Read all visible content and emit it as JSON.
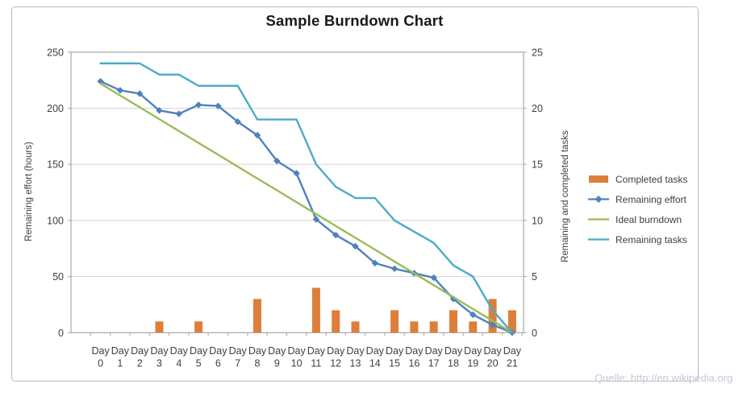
{
  "title": "Sample Burndown Chart",
  "footer": "Quelle: http://en.wikipedia.org",
  "axes": {
    "x_word": "Day",
    "x_numbers": [
      "0",
      "1",
      "2",
      "3",
      "4",
      "5",
      "6",
      "7",
      "8",
      "9",
      "10",
      "11",
      "12",
      "13",
      "14",
      "15",
      "16",
      "17",
      "18",
      "19",
      "20",
      "21"
    ],
    "left_ticks": [
      0,
      50,
      100,
      150,
      200,
      250
    ],
    "right_ticks": [
      0,
      5,
      10,
      15,
      20,
      25
    ]
  },
  "legend": [
    {
      "label": "Completed tasks",
      "swatch": "bar",
      "color": "#dd7e3a"
    },
    {
      "label": "Remaining effort",
      "swatch": "line-marker",
      "color": "#4f81bd"
    },
    {
      "label": "Ideal burndown",
      "swatch": "line",
      "color": "#9bbb59"
    },
    {
      "label": "Remaining tasks",
      "swatch": "line",
      "color": "#4bacc6"
    }
  ],
  "colors": {
    "gridline": "#d5d5d5",
    "axis_line": "#a7a7a7",
    "tick_label": "#3e3e46",
    "title": "#1a1a1a",
    "footer_text": "#c3c6d8",
    "frame_border": "#b9b9b9"
  },
  "chart_data": {
    "type": "combo (bar + line)",
    "title": "Sample Burndown Chart",
    "categories": [
      "Day 0",
      "Day 1",
      "Day 2",
      "Day 3",
      "Day 4",
      "Day 5",
      "Day 6",
      "Day 7",
      "Day 8",
      "Day 9",
      "Day 10",
      "Day 11",
      "Day 12",
      "Day 13",
      "Day 14",
      "Day 15",
      "Day 16",
      "Day 17",
      "Day 18",
      "Day 19",
      "Day 20",
      "Day 21"
    ],
    "left_axis": {
      "label": "Remaining effort (hours)",
      "min": 0,
      "max": 250,
      "step": 50
    },
    "right_axis": {
      "label": "Remaining and completed tasks",
      "min": 0,
      "max": 25,
      "step": 5
    },
    "grid": true,
    "legend_position": "right",
    "series": [
      {
        "name": "Completed tasks",
        "type": "bar",
        "axis": "right",
        "color": "#dd7e3a",
        "values": [
          0,
          0,
          0,
          1,
          0,
          1,
          0,
          0,
          3,
          0,
          0,
          4,
          2,
          1,
          0,
          2,
          1,
          1,
          2,
          1,
          3,
          2
        ]
      },
      {
        "name": "Remaining effort",
        "type": "line",
        "marker": "diamond",
        "axis": "left",
        "color": "#4f81bd",
        "values": [
          224,
          216,
          213,
          198,
          195,
          203,
          202,
          188,
          176,
          153,
          142,
          101,
          87,
          77,
          62,
          57,
          53,
          49,
          30,
          16,
          7,
          0
        ]
      },
      {
        "name": "Ideal burndown",
        "type": "line",
        "axis": "left",
        "color": "#9bbb59",
        "values": [
          222,
          211.4,
          200.9,
          190.3,
          179.7,
          169.1,
          158.6,
          148.0,
          137.4,
          126.9,
          116.3,
          105.7,
          95.1,
          84.6,
          74.0,
          63.4,
          52.9,
          42.3,
          31.7,
          21.1,
          10.6,
          0
        ]
      },
      {
        "name": "Remaining tasks",
        "type": "line",
        "axis": "right",
        "color": "#4bacc6",
        "values": [
          24,
          24,
          24,
          23,
          23,
          22,
          22,
          22,
          19,
          19,
          19,
          15,
          13,
          12,
          12,
          10,
          9,
          8,
          6,
          5,
          2,
          0
        ]
      }
    ]
  }
}
